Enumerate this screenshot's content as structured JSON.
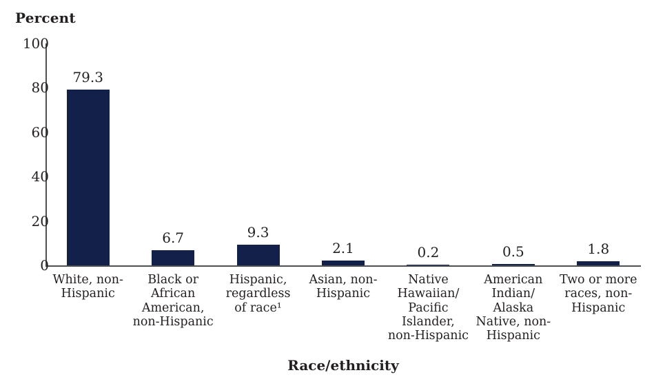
{
  "chart_data": {
    "type": "bar",
    "title": "",
    "y_axis_title": "Percent",
    "xlabel": "Race/ethnicity",
    "ylabel": "Percent",
    "categories": [
      "White, non-Hispanic",
      "Black or African American, non-Hispanic",
      "Hispanic, regardless of race¹",
      "Asian, non-Hispanic",
      "Native Hawaiian/ Pacific Islander, non-Hispanic",
      "American Indian/ Alaska Native, non-Hispanic",
      "Two or more races, non-Hispanic"
    ],
    "category_lines": [
      [
        "White, non-",
        "Hispanic"
      ],
      [
        "Black or",
        "African",
        "American,",
        "non-Hispanic"
      ],
      [
        "Hispanic,",
        "regardless",
        "of race¹"
      ],
      [
        "Asian, non-",
        "Hispanic"
      ],
      [
        "Native",
        "Hawaiian/",
        "Pacific",
        "Islander,",
        "non-Hispanic"
      ],
      [
        "American",
        "Indian/",
        "Alaska",
        "Native, non-",
        "Hispanic"
      ],
      [
        "Two or more",
        "races, non-",
        "Hispanic"
      ]
    ],
    "values": [
      79.3,
      6.7,
      9.3,
      2.1,
      0.2,
      0.5,
      1.8
    ],
    "value_labels": [
      "79.3",
      "6.7",
      "9.3",
      "2.1",
      "0.2",
      "0.5",
      "1.8"
    ],
    "ylim": [
      0,
      100
    ],
    "yticks": [
      0,
      20,
      40,
      60,
      80,
      100
    ],
    "grid": false,
    "legend_position": "none",
    "bar_color": "#13204a",
    "axis_color": "#4f5052",
    "text_color": "#231f20"
  }
}
